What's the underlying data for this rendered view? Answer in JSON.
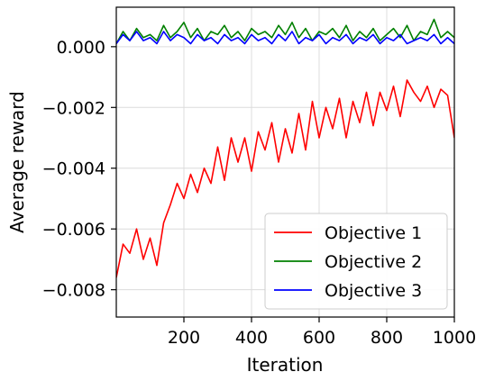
{
  "chart_data": {
    "type": "line",
    "title": "",
    "xlabel": "Iteration",
    "ylabel": "Average reward",
    "xlim": [
      0,
      1000
    ],
    "ylim": [
      -0.0089,
      0.0013
    ],
    "grid": true,
    "legend_position": "bottom-right",
    "x_ticks": [
      200,
      400,
      600,
      800,
      1000
    ],
    "x_tick_labels": [
      "200",
      "400",
      "600",
      "800",
      "1000"
    ],
    "y_ticks": [
      0.0,
      -0.002,
      -0.004,
      -0.006,
      -0.008
    ],
    "y_tick_labels": [
      "0.000",
      "−0.002",
      "−0.004",
      "−0.006",
      "−0.008"
    ],
    "series": [
      {
        "name": "Objective 1",
        "color": "#ff0000",
        "x": [
          0,
          20,
          40,
          60,
          80,
          100,
          120,
          140,
          160,
          180,
          200,
          220,
          240,
          260,
          280,
          300,
          320,
          340,
          360,
          380,
          400,
          420,
          440,
          460,
          480,
          500,
          520,
          540,
          560,
          580,
          600,
          620,
          640,
          660,
          680,
          700,
          720,
          740,
          760,
          780,
          800,
          820,
          840,
          860,
          880,
          900,
          920,
          940,
          960,
          980,
          1000
        ],
        "y": [
          -0.0076,
          -0.0065,
          -0.0068,
          -0.006,
          -0.007,
          -0.0063,
          -0.0072,
          -0.0058,
          -0.0052,
          -0.0045,
          -0.005,
          -0.0042,
          -0.0048,
          -0.004,
          -0.0045,
          -0.0033,
          -0.0044,
          -0.003,
          -0.0038,
          -0.003,
          -0.0041,
          -0.0028,
          -0.0034,
          -0.0025,
          -0.0038,
          -0.0027,
          -0.0035,
          -0.0022,
          -0.0034,
          -0.0018,
          -0.003,
          -0.002,
          -0.0027,
          -0.0017,
          -0.003,
          -0.0018,
          -0.0025,
          -0.0015,
          -0.0026,
          -0.0015,
          -0.0021,
          -0.0013,
          -0.0023,
          -0.0011,
          -0.0015,
          -0.0018,
          -0.0013,
          -0.002,
          -0.0014,
          -0.0016,
          -0.003
        ]
      },
      {
        "name": "Objective 2",
        "color": "#008000",
        "x": [
          0,
          20,
          40,
          60,
          80,
          100,
          120,
          140,
          160,
          180,
          200,
          220,
          240,
          260,
          280,
          300,
          320,
          340,
          360,
          380,
          400,
          420,
          440,
          460,
          480,
          500,
          520,
          540,
          560,
          580,
          600,
          620,
          640,
          660,
          680,
          700,
          720,
          740,
          760,
          780,
          800,
          820,
          840,
          860,
          880,
          900,
          920,
          940,
          960,
          980,
          1000
        ],
        "y": [
          0.0001,
          0.0005,
          0.0002,
          0.0006,
          0.0003,
          0.0004,
          0.0002,
          0.0007,
          0.0003,
          0.0005,
          0.0008,
          0.0003,
          0.0006,
          0.0002,
          0.0005,
          0.0004,
          0.0007,
          0.0003,
          0.0005,
          0.0002,
          0.0006,
          0.0004,
          0.0005,
          0.0003,
          0.0007,
          0.0004,
          0.0008,
          0.0003,
          0.0006,
          0.0002,
          0.0005,
          0.0004,
          0.0006,
          0.0003,
          0.0007,
          0.0002,
          0.0005,
          0.0003,
          0.0006,
          0.0002,
          0.0004,
          0.0006,
          0.0003,
          0.0007,
          0.0002,
          0.0005,
          0.0004,
          0.0009,
          0.0003,
          0.0005,
          0.0003
        ]
      },
      {
        "name": "Objective 3",
        "color": "#0000ff",
        "x": [
          0,
          20,
          40,
          60,
          80,
          100,
          120,
          140,
          160,
          180,
          200,
          220,
          240,
          260,
          280,
          300,
          320,
          340,
          360,
          380,
          400,
          420,
          440,
          460,
          480,
          500,
          520,
          540,
          560,
          580,
          600,
          620,
          640,
          660,
          680,
          700,
          720,
          740,
          760,
          780,
          800,
          820,
          840,
          860,
          880,
          900,
          920,
          940,
          960,
          980,
          1000
        ],
        "y": [
          0.0001,
          0.0004,
          0.0002,
          0.0005,
          0.0002,
          0.0003,
          0.0001,
          0.0005,
          0.0002,
          0.0004,
          0.0003,
          0.0001,
          0.0004,
          0.0002,
          0.0003,
          0.0001,
          0.0004,
          0.0002,
          0.0003,
          0.0001,
          0.0004,
          0.0002,
          0.0003,
          0.0001,
          0.0004,
          0.0002,
          0.0005,
          0.0001,
          0.0003,
          0.0002,
          0.0004,
          0.0001,
          0.0003,
          0.0002,
          0.0004,
          0.0001,
          0.0003,
          0.0002,
          0.0004,
          0.0001,
          0.0003,
          0.0002,
          0.0004,
          0.0001,
          0.0002,
          0.0003,
          0.0002,
          0.0004,
          0.0001,
          0.0003,
          0.0001
        ]
      }
    ]
  }
}
